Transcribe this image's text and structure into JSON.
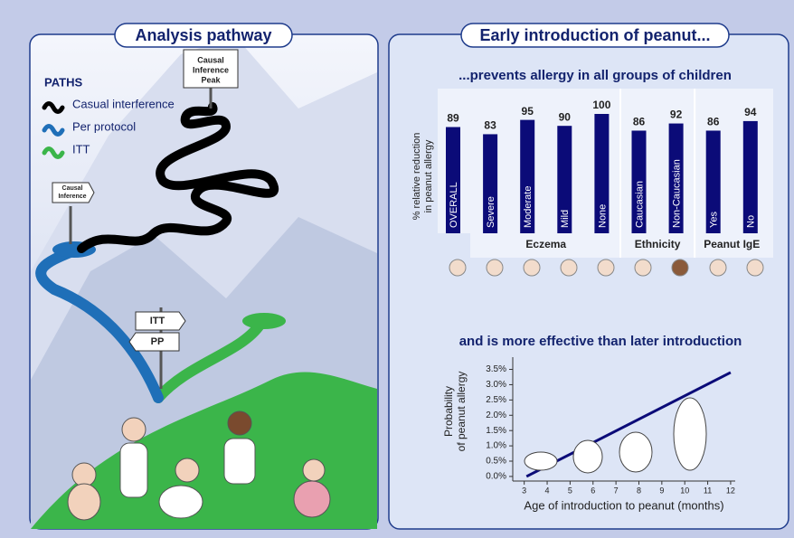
{
  "left_panel": {
    "title": "Analysis pathway",
    "legend_title": "PATHS",
    "legend": [
      {
        "label": "Casual interference",
        "color": "#000000"
      },
      {
        "label": "Per protocol",
        "color": "#1f6fb8"
      },
      {
        "label": "ITT",
        "color": "#3bb54a"
      }
    ],
    "signs": [
      {
        "lines": [
          "Causal",
          "Inference",
          "Peak"
        ]
      },
      {
        "lines": [
          "Causal",
          "Inference"
        ]
      },
      {
        "lines": [
          "ITT"
        ]
      },
      {
        "lines": [
          "PP"
        ]
      }
    ]
  },
  "right_panel": {
    "title": "Early introduction of peanut..."
  },
  "chart_data": [
    {
      "type": "bar",
      "title": "...prevents allergy in all groups of children",
      "ylabel": [
        "% relative reduction",
        "in peanut allergy"
      ],
      "color": "#0b0b78",
      "groups": [
        {
          "categories": [
            "OVERALL"
          ],
          "values": [
            89
          ]
        },
        {
          "name": "Eczema",
          "categories": [
            "Severe",
            "Moderate",
            "Mild",
            "None"
          ],
          "values": [
            83,
            95,
            90,
            100
          ]
        },
        {
          "name": "Ethnicity",
          "categories": [
            "Caucasian",
            "Non-Caucasian"
          ],
          "values": [
            86,
            92
          ]
        },
        {
          "name": "Peanut IgE",
          "categories": [
            "Yes",
            "No"
          ],
          "values": [
            86,
            94
          ]
        }
      ]
    },
    {
      "type": "line",
      "title": "and is more effective than later introduction",
      "xlabel": "Age of introduction to peanut (months)",
      "ylabel": [
        "Probability",
        "of peanut allergy"
      ],
      "xlim": [
        2.5,
        12.2
      ],
      "xticks": [
        3,
        4,
        5,
        6,
        7,
        8,
        9,
        10,
        11,
        12
      ],
      "ylim": [
        -0.15,
        3.9
      ],
      "yticks": [
        {
          "value": 0,
          "label": "0.0%"
        },
        {
          "value": 0.5,
          "label": "0.5%"
        },
        {
          "value": 1,
          "label": "1.0%"
        },
        {
          "value": 1.5,
          "label": "1.5%"
        },
        {
          "value": 2,
          "label": "2.0%"
        },
        {
          "value": 2.5,
          "label": "2.5%"
        },
        {
          "value": 3,
          "label": "3.0%"
        },
        {
          "value": 3.5,
          "label": "3.5%"
        }
      ],
      "series": [
        {
          "color": "#0b0b78",
          "x": [
            3.1,
            12
          ],
          "values": [
            0.0,
            3.4
          ]
        }
      ]
    }
  ]
}
